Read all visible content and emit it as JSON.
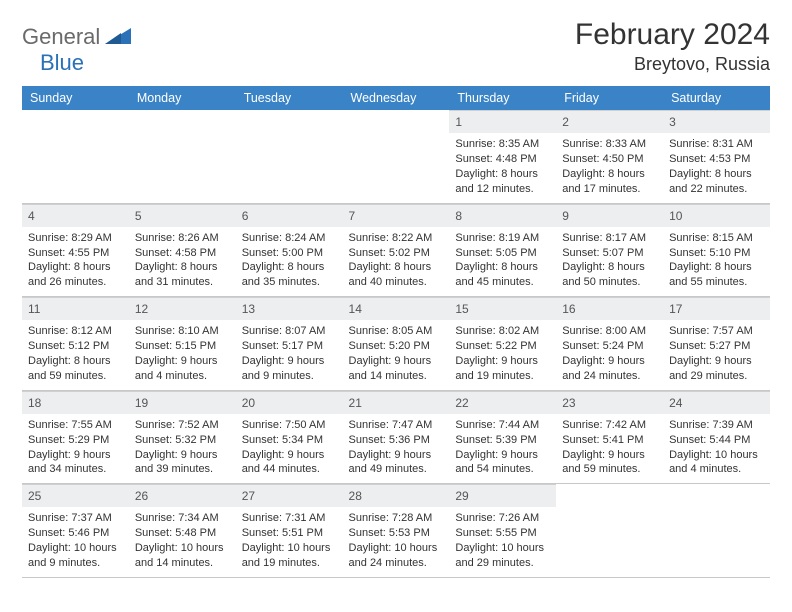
{
  "brand": {
    "name_a": "General",
    "name_b": "Blue"
  },
  "title": {
    "month": "February 2024",
    "location": "Breytovo, Russia"
  },
  "colors": {
    "header_bg": "#3a83c6",
    "header_fg": "#ffffff",
    "daynum_bg": "#eceef0",
    "border": "#c8c8c8",
    "brand_gray": "#6a6a6a",
    "brand_blue": "#2a71b8",
    "text": "#333333",
    "page_bg": "#ffffff"
  },
  "weekdays": [
    "Sunday",
    "Monday",
    "Tuesday",
    "Wednesday",
    "Thursday",
    "Friday",
    "Saturday"
  ],
  "weeks": [
    [
      null,
      null,
      null,
      null,
      {
        "n": "1",
        "sunrise": "8:35 AM",
        "sunset": "4:48 PM",
        "day_a": "Daylight: 8 hours",
        "day_b": "and 12 minutes."
      },
      {
        "n": "2",
        "sunrise": "8:33 AM",
        "sunset": "4:50 PM",
        "day_a": "Daylight: 8 hours",
        "day_b": "and 17 minutes."
      },
      {
        "n": "3",
        "sunrise": "8:31 AM",
        "sunset": "4:53 PM",
        "day_a": "Daylight: 8 hours",
        "day_b": "and 22 minutes."
      }
    ],
    [
      {
        "n": "4",
        "sunrise": "8:29 AM",
        "sunset": "4:55 PM",
        "day_a": "Daylight: 8 hours",
        "day_b": "and 26 minutes."
      },
      {
        "n": "5",
        "sunrise": "8:26 AM",
        "sunset": "4:58 PM",
        "day_a": "Daylight: 8 hours",
        "day_b": "and 31 minutes."
      },
      {
        "n": "6",
        "sunrise": "8:24 AM",
        "sunset": "5:00 PM",
        "day_a": "Daylight: 8 hours",
        "day_b": "and 35 minutes."
      },
      {
        "n": "7",
        "sunrise": "8:22 AM",
        "sunset": "5:02 PM",
        "day_a": "Daylight: 8 hours",
        "day_b": "and 40 minutes."
      },
      {
        "n": "8",
        "sunrise": "8:19 AM",
        "sunset": "5:05 PM",
        "day_a": "Daylight: 8 hours",
        "day_b": "and 45 minutes."
      },
      {
        "n": "9",
        "sunrise": "8:17 AM",
        "sunset": "5:07 PM",
        "day_a": "Daylight: 8 hours",
        "day_b": "and 50 minutes."
      },
      {
        "n": "10",
        "sunrise": "8:15 AM",
        "sunset": "5:10 PM",
        "day_a": "Daylight: 8 hours",
        "day_b": "and 55 minutes."
      }
    ],
    [
      {
        "n": "11",
        "sunrise": "8:12 AM",
        "sunset": "5:12 PM",
        "day_a": "Daylight: 8 hours",
        "day_b": "and 59 minutes."
      },
      {
        "n": "12",
        "sunrise": "8:10 AM",
        "sunset": "5:15 PM",
        "day_a": "Daylight: 9 hours",
        "day_b": "and 4 minutes."
      },
      {
        "n": "13",
        "sunrise": "8:07 AM",
        "sunset": "5:17 PM",
        "day_a": "Daylight: 9 hours",
        "day_b": "and 9 minutes."
      },
      {
        "n": "14",
        "sunrise": "8:05 AM",
        "sunset": "5:20 PM",
        "day_a": "Daylight: 9 hours",
        "day_b": "and 14 minutes."
      },
      {
        "n": "15",
        "sunrise": "8:02 AM",
        "sunset": "5:22 PM",
        "day_a": "Daylight: 9 hours",
        "day_b": "and 19 minutes."
      },
      {
        "n": "16",
        "sunrise": "8:00 AM",
        "sunset": "5:24 PM",
        "day_a": "Daylight: 9 hours",
        "day_b": "and 24 minutes."
      },
      {
        "n": "17",
        "sunrise": "7:57 AM",
        "sunset": "5:27 PM",
        "day_a": "Daylight: 9 hours",
        "day_b": "and 29 minutes."
      }
    ],
    [
      {
        "n": "18",
        "sunrise": "7:55 AM",
        "sunset": "5:29 PM",
        "day_a": "Daylight: 9 hours",
        "day_b": "and 34 minutes."
      },
      {
        "n": "19",
        "sunrise": "7:52 AM",
        "sunset": "5:32 PM",
        "day_a": "Daylight: 9 hours",
        "day_b": "and 39 minutes."
      },
      {
        "n": "20",
        "sunrise": "7:50 AM",
        "sunset": "5:34 PM",
        "day_a": "Daylight: 9 hours",
        "day_b": "and 44 minutes."
      },
      {
        "n": "21",
        "sunrise": "7:47 AM",
        "sunset": "5:36 PM",
        "day_a": "Daylight: 9 hours",
        "day_b": "and 49 minutes."
      },
      {
        "n": "22",
        "sunrise": "7:44 AM",
        "sunset": "5:39 PM",
        "day_a": "Daylight: 9 hours",
        "day_b": "and 54 minutes."
      },
      {
        "n": "23",
        "sunrise": "7:42 AM",
        "sunset": "5:41 PM",
        "day_a": "Daylight: 9 hours",
        "day_b": "and 59 minutes."
      },
      {
        "n": "24",
        "sunrise": "7:39 AM",
        "sunset": "5:44 PM",
        "day_a": "Daylight: 10 hours",
        "day_b": "and 4 minutes."
      }
    ],
    [
      {
        "n": "25",
        "sunrise": "7:37 AM",
        "sunset": "5:46 PM",
        "day_a": "Daylight: 10 hours",
        "day_b": "and 9 minutes."
      },
      {
        "n": "26",
        "sunrise": "7:34 AM",
        "sunset": "5:48 PM",
        "day_a": "Daylight: 10 hours",
        "day_b": "and 14 minutes."
      },
      {
        "n": "27",
        "sunrise": "7:31 AM",
        "sunset": "5:51 PM",
        "day_a": "Daylight: 10 hours",
        "day_b": "and 19 minutes."
      },
      {
        "n": "28",
        "sunrise": "7:28 AM",
        "sunset": "5:53 PM",
        "day_a": "Daylight: 10 hours",
        "day_b": "and 24 minutes."
      },
      {
        "n": "29",
        "sunrise": "7:26 AM",
        "sunset": "5:55 PM",
        "day_a": "Daylight: 10 hours",
        "day_b": "and 29 minutes."
      },
      null,
      null
    ]
  ],
  "labels": {
    "sunrise": "Sunrise: ",
    "sunset": "Sunset: "
  }
}
